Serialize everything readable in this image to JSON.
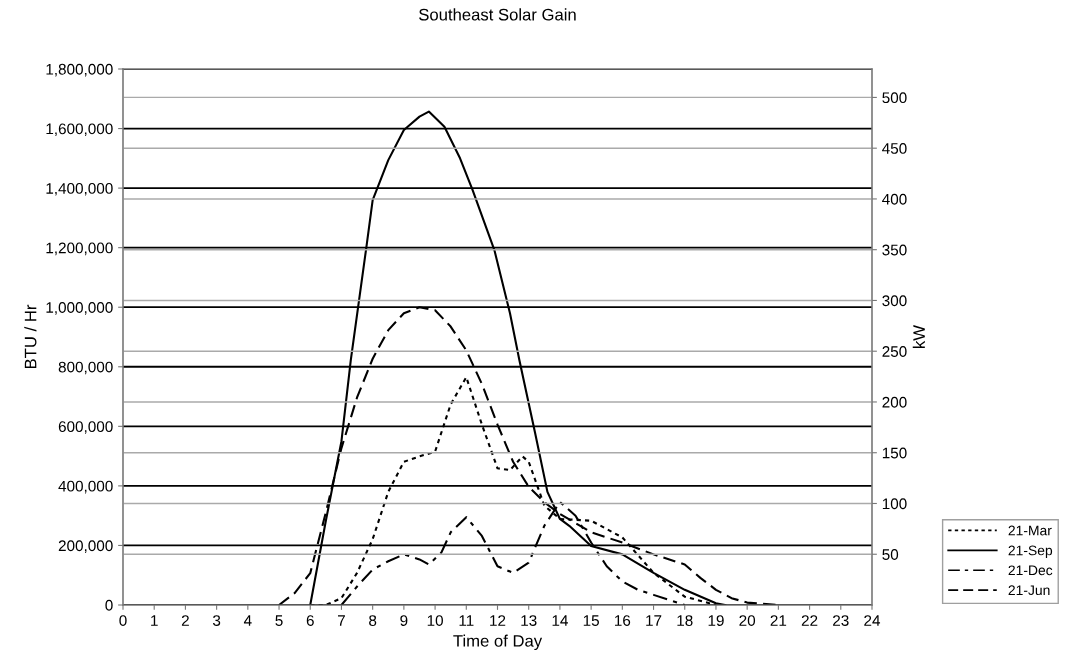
{
  "chart_data": {
    "type": "line",
    "title": "Southeast Solar Gain",
    "xlabel": "Time of Day",
    "ylabel": "BTU / Hr",
    "y2label": "kW",
    "xlim": [
      0,
      24
    ],
    "xticks": [
      0,
      1,
      2,
      3,
      4,
      5,
      6,
      7,
      8,
      9,
      10,
      11,
      12,
      13,
      14,
      15,
      16,
      17,
      18,
      19,
      20,
      21,
      22,
      23,
      24
    ],
    "ylim": [
      0,
      1800000
    ],
    "yticks": [
      {
        "value": 0,
        "label": "0"
      },
      {
        "value": 200000,
        "label": "200,000"
      },
      {
        "value": 400000,
        "label": "400,000"
      },
      {
        "value": 600000,
        "label": "600,000"
      },
      {
        "value": 800000,
        "label": "800,000"
      },
      {
        "value": 1000000,
        "label": "1,000,000"
      },
      {
        "value": 1200000,
        "label": "1,200,000"
      },
      {
        "value": 1400000,
        "label": "1,400,000"
      },
      {
        "value": 1600000,
        "label": "1,600,000"
      },
      {
        "value": 1800000,
        "label": "1,800,000"
      }
    ],
    "y2lim": [
      0,
      528
    ],
    "y2ticks": [
      50,
      100,
      150,
      200,
      250,
      300,
      350,
      400,
      450,
      500
    ],
    "grid": "y",
    "legend": "bottom right",
    "marker": "none",
    "series": [
      {
        "name": "21-Mar",
        "color": "#000000",
        "line_style": "dotted",
        "x": [
          6,
          6.5,
          7,
          7.5,
          8,
          8.5,
          9,
          9.5,
          10,
          10.5,
          11,
          11.5,
          12,
          12.4,
          12.8,
          13,
          13.5,
          14,
          15,
          16,
          17,
          18,
          19
        ],
        "values": [
          0,
          0,
          23000,
          108000,
          221000,
          380000,
          481000,
          499000,
          515000,
          674000,
          765000,
          606000,
          459000,
          453000,
          499000,
          481000,
          334000,
          289000,
          283000,
          227000,
          108000,
          28000,
          0
        ]
      },
      {
        "name": "21-Sep",
        "color": "#000000",
        "line_style": "solid",
        "x": [
          6,
          6.5,
          7,
          7.3,
          7.8,
          8,
          8.5,
          9,
          9.5,
          9.8,
          10.3,
          10.8,
          11.2,
          11.9,
          12.4,
          12.7,
          13.2,
          13.6,
          14,
          14.3,
          15,
          16,
          17,
          18,
          19,
          19.3
        ],
        "values": [
          0,
          283000,
          550000,
          823000,
          1203000,
          1360000,
          1494000,
          1595000,
          1640000,
          1657000,
          1606000,
          1500000,
          1394000,
          1192000,
          980000,
          823000,
          580000,
          380000,
          289000,
          266000,
          198000,
          170000,
          108000,
          51000,
          6000,
          0
        ]
      },
      {
        "name": "21-Dec",
        "color": "#000000",
        "line_style": "dashdot",
        "x": [
          7,
          7.5,
          8,
          8.5,
          9,
          9.5,
          9.8,
          10.2,
          10.5,
          11,
          11.5,
          12,
          12.5,
          13,
          13.5,
          14,
          14.5,
          15,
          15.5,
          16,
          16.5,
          17,
          17.5,
          18
        ],
        "values": [
          0,
          62000,
          119000,
          147000,
          170000,
          153000,
          136000,
          176000,
          244000,
          295000,
          232000,
          130000,
          108000,
          142000,
          266000,
          346000,
          300000,
          210000,
          130000,
          79000,
          51000,
          34000,
          17000,
          0
        ]
      },
      {
        "name": "21-Jun",
        "color": "#000000",
        "line_style": "dashed",
        "x": [
          5,
          5.5,
          6,
          6.5,
          7,
          7.5,
          8,
          8.5,
          9,
          9.5,
          10,
          10.5,
          11,
          11.5,
          12,
          12.5,
          13,
          13.5,
          14,
          15,
          16,
          17,
          18,
          18.5,
          19,
          19.5,
          20,
          21
        ],
        "values": [
          0,
          40000,
          107000,
          311000,
          527000,
          697000,
          827000,
          923000,
          980000,
          1000000,
          990000,
          935000,
          855000,
          742000,
          606000,
          481000,
          397000,
          345000,
          306000,
          244000,
          210000,
          170000,
          136000,
          91000,
          51000,
          23000,
          8000,
          0
        ]
      }
    ]
  }
}
